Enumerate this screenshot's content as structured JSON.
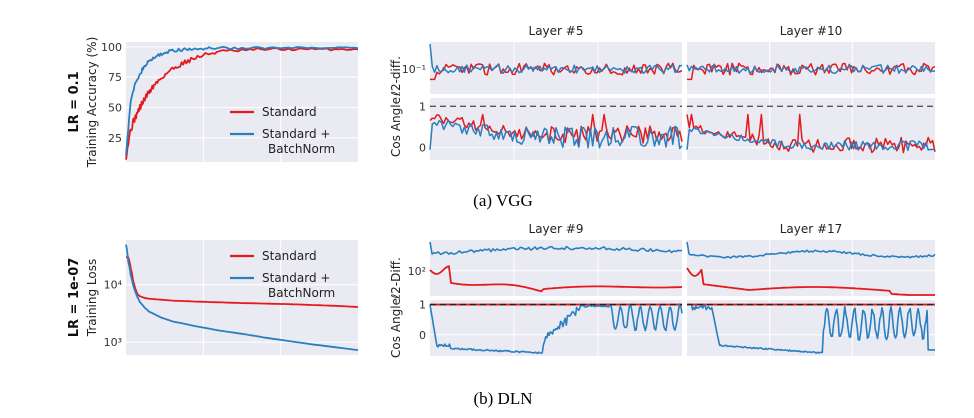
{
  "colors": {
    "standard": "#e41a1c",
    "batchnorm": "#2a7fc0",
    "panel_bg": "#eaeaf2",
    "grid": "#ffffff",
    "reference": "#555555"
  },
  "captions": {
    "vgg": "(a) VGG",
    "dln": "(b) DLN"
  },
  "chart_data": [
    {
      "type": "line",
      "row": "vgg",
      "panel": "training",
      "row_label": "LR = 0.1",
      "title": "",
      "xlabel": "",
      "ylabel": "Training Accuracy (%)",
      "yscale": "linear",
      "ylim": [
        5,
        104
      ],
      "yticks": [
        25,
        50,
        75,
        100
      ],
      "ytick_labels": [
        "25",
        "50",
        "75",
        "100"
      ],
      "xlim": [
        0,
        100
      ],
      "grid": true,
      "legend_position": "lower-right",
      "x": [
        0,
        2,
        4,
        6,
        8,
        10,
        12,
        15,
        18,
        22,
        26,
        30,
        35,
        40,
        50,
        60,
        70,
        80,
        90,
        100
      ],
      "series": [
        {
          "name": "Standard",
          "color": "#e41a1c",
          "values": [
            10,
            32,
            42,
            50,
            57,
            63,
            68,
            74,
            79,
            84,
            88,
            91,
            94,
            96,
            97,
            98,
            98,
            98,
            98,
            98
          ]
        },
        {
          "name": "Standard +\nBatchNorm",
          "color": "#2a7fc0",
          "values": [
            12,
            55,
            69,
            78,
            84,
            88,
            91,
            94,
            96,
            97,
            98,
            98,
            99,
            99,
            99,
            99,
            99,
            99,
            99,
            99
          ]
        }
      ]
    },
    {
      "type": "line",
      "row": "vgg",
      "panel": "l2-diff",
      "title": "Layer #5",
      "xlabel": "",
      "ylabel": "ℓ2-diff.",
      "yscale": "log",
      "yticks": [
        0.1
      ],
      "ytick_labels": [
        "10⁻¹"
      ],
      "grid": true,
      "series": [
        {
          "name": "Standard",
          "color": "#e41a1c",
          "level": 0.14,
          "spread": 0.25
        },
        {
          "name": "Standard +\nBatchNorm",
          "color": "#2a7fc0",
          "level": 0.16,
          "spread": 0.18
        }
      ]
    },
    {
      "type": "line",
      "row": "vgg",
      "panel": "l2-diff",
      "title": "Layer #10",
      "xlabel": "",
      "ylabel": "",
      "yscale": "log",
      "yticks": [
        0.1
      ],
      "ytick_labels": [],
      "grid": true,
      "series": [
        {
          "name": "Standard",
          "color": "#e41a1c",
          "level": 0.14,
          "spread": 0.25
        },
        {
          "name": "Standard +\nBatchNorm",
          "color": "#2a7fc0",
          "level": 0.16,
          "spread": 0.18
        }
      ]
    },
    {
      "type": "line",
      "row": "vgg",
      "panel": "cos-angle",
      "title": "",
      "xlabel": "",
      "ylabel": "Cos Angle",
      "ylim": [
        -0.3,
        1.2
      ],
      "yticks": [
        0,
        1
      ],
      "ytick_labels": [
        "0",
        "1"
      ],
      "reference_line": 1,
      "grid": true,
      "series": [
        {
          "name": "Standard",
          "color": "#e41a1c",
          "start": 0.75,
          "mid": 0.3,
          "spread": 0.3
        },
        {
          "name": "Standard +\nBatchNorm",
          "color": "#2a7fc0",
          "start": 0.6,
          "mid": 0.25,
          "spread": 0.35
        }
      ]
    },
    {
      "type": "line",
      "row": "vgg",
      "panel": "cos-angle",
      "title": "",
      "xlabel": "",
      "ylabel": "",
      "ylim": [
        -0.3,
        1.2
      ],
      "yticks": [
        0,
        1
      ],
      "ytick_labels": [],
      "reference_line": 1,
      "grid": true,
      "series": [
        {
          "name": "Standard",
          "color": "#e41a1c",
          "start": 0.5,
          "mid": 0.05,
          "spread": 0.25
        },
        {
          "name": "Standard +\nBatchNorm",
          "color": "#2a7fc0",
          "start": 0.45,
          "mid": 0.05,
          "spread": 0.15
        }
      ]
    },
    {
      "type": "line",
      "row": "dln",
      "panel": "training",
      "row_label": "LR = 1e-07",
      "title": "",
      "xlabel": "",
      "ylabel": "Training Loss",
      "yscale": "log",
      "ylim": [
        600,
        60000
      ],
      "yticks": [
        1000,
        10000
      ],
      "ytick_labels": [
        "10³",
        "10⁴"
      ],
      "xlim": [
        0,
        100
      ],
      "grid": true,
      "legend_position": "top-right",
      "x": [
        0,
        1,
        2,
        3,
        4,
        5,
        6,
        8,
        10,
        15,
        20,
        30,
        40,
        50,
        60,
        70,
        80,
        90,
        100
      ],
      "series": [
        {
          "name": "Standard",
          "color": "#e41a1c",
          "values": [
            30000,
            30000,
            20000,
            12000,
            8500,
            6800,
            6300,
            5900,
            5700,
            5500,
            5300,
            5100,
            4950,
            4800,
            4700,
            4600,
            4450,
            4300,
            4100
          ]
        },
        {
          "name": "Standard +\nBatchNorm",
          "color": "#2a7fc0",
          "values": [
            50000,
            25000,
            15000,
            10000,
            7500,
            6000,
            5000,
            4000,
            3400,
            2700,
            2300,
            1900,
            1600,
            1400,
            1200,
            1050,
            920,
            820,
            730
          ]
        }
      ]
    },
    {
      "type": "line",
      "row": "dln",
      "panel": "l2-diff",
      "title": "Layer #9",
      "xlabel": "",
      "ylabel": "ℓ2-Diff.",
      "yscale": "log",
      "yticks": [
        100
      ],
      "ytick_labels": [
        "10²"
      ],
      "grid": true,
      "series": [
        {
          "name": "Standard",
          "color": "#e41a1c"
        },
        {
          "name": "Standard +\nBatchNorm",
          "color": "#2a7fc0"
        }
      ]
    },
    {
      "type": "line",
      "row": "dln",
      "panel": "l2-diff",
      "title": "Layer #17",
      "xlabel": "",
      "ylabel": "",
      "yscale": "log",
      "yticks": [
        100
      ],
      "ytick_labels": [],
      "grid": true,
      "series": [
        {
          "name": "Standard",
          "color": "#e41a1c"
        },
        {
          "name": "Standard +\nBatchNorm",
          "color": "#2a7fc0"
        }
      ]
    },
    {
      "type": "line",
      "row": "dln",
      "panel": "cos-angle",
      "title": "",
      "xlabel": "",
      "ylabel": "Cos Angle",
      "ylim": [
        -0.7,
        1.15
      ],
      "yticks": [
        0,
        1
      ],
      "ytick_labels": [
        "0",
        "1"
      ],
      "reference_line": 1,
      "grid": true,
      "series": [
        {
          "name": "Standard",
          "color": "#e41a1c",
          "value": 1.0
        },
        {
          "name": "Standard +\nBatchNorm",
          "color": "#2a7fc0",
          "oscillation_start": 0.45
        }
      ]
    },
    {
      "type": "line",
      "row": "dln",
      "panel": "cos-angle",
      "title": "",
      "xlabel": "",
      "ylabel": "",
      "ylim": [
        -0.7,
        1.15
      ],
      "yticks": [
        0,
        1
      ],
      "ytick_labels": [],
      "reference_line": 1,
      "grid": true,
      "series": [
        {
          "name": "Standard",
          "color": "#e41a1c",
          "value": 1.0
        },
        {
          "name": "Standard +\nBatchNorm",
          "color": "#2a7fc0",
          "oscillation_start": 0.55
        }
      ]
    }
  ]
}
